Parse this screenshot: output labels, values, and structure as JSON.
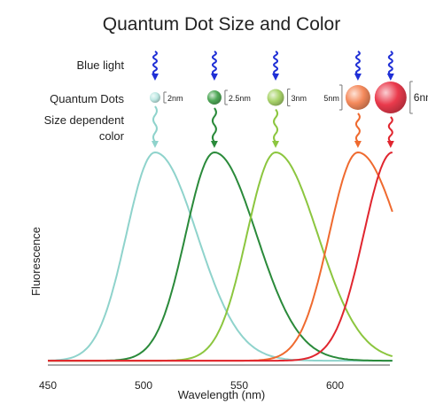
{
  "chart_data": {
    "type": "line",
    "title": "Quantum Dot Size and Color",
    "xlabel": "Wavelength (nm)",
    "ylabel": "Fluorescence",
    "xlim": [
      450,
      630
    ],
    "ylim": [
      0,
      1
    ],
    "xticks": [
      "450",
      "500",
      "550",
      "600"
    ],
    "grid": false,
    "row_labels": {
      "blue_light": "Blue light",
      "quantum_dots": "Quantum Dots",
      "size_color_line1": "Size dependent",
      "size_color_line2": "color"
    },
    "series": [
      {
        "size_label": "2nm",
        "peak_nm": 506,
        "color": "#8fd3cc",
        "dot_color": "#bfe9e4",
        "dot_diameter_nm": 2
      },
      {
        "size_label": "2.5nm",
        "peak_nm": 537,
        "color": "#2a8a3a",
        "dot_color": "#4fa857",
        "dot_diameter_nm": 2.5
      },
      {
        "size_label": "3nm",
        "peak_nm": 569,
        "color": "#8cc63f",
        "dot_color": "#a9d46b",
        "dot_diameter_nm": 3
      },
      {
        "size_label": "5nm",
        "peak_nm": 612,
        "color": "#ef6a2f",
        "dot_color": "#f58a5c",
        "dot_diameter_nm": 5
      },
      {
        "size_label": "6nm",
        "peak_nm": 630,
        "color": "#e0262f",
        "dot_color": "#ea3a4c",
        "dot_diameter_nm": 6
      }
    ],
    "colors": {
      "blue_light": "#1f2fd6",
      "axis": "#555555",
      "text": "#222222"
    }
  }
}
